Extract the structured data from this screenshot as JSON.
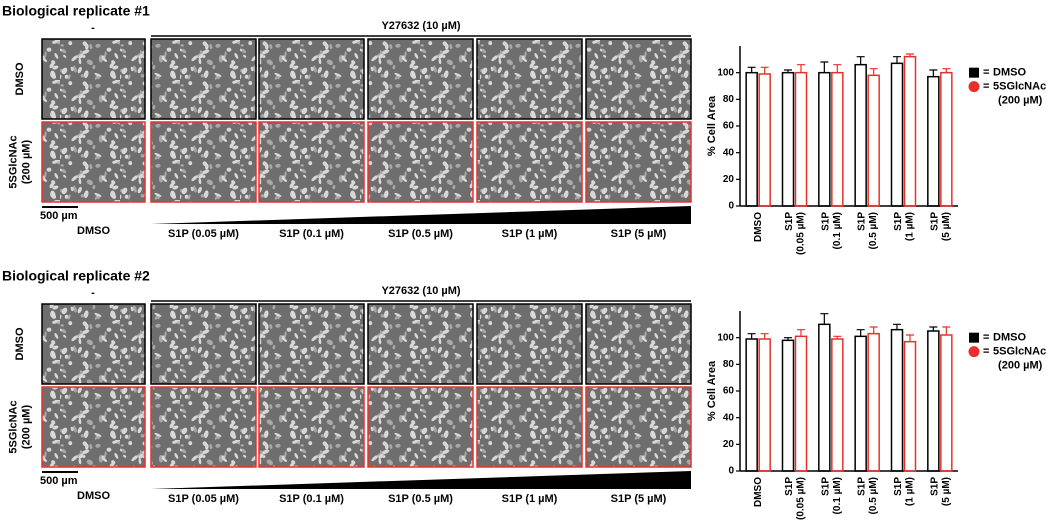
{
  "panels": [
    {
      "title": "Biological replicate #1",
      "untreated": "-",
      "treatment": "Y27632 (10 µM)",
      "row_labels": [
        [
          "DMSO"
        ],
        [
          "5SGlcNAc",
          "(200 µM)"
        ]
      ],
      "scale_bar": "500 µm",
      "column_labels": [
        "DMSO",
        "S1P (0.05 µM)",
        "S1P (0.1 µM)",
        "S1P (0.5 µM)",
        "S1P (1 µM)",
        "S1P (5 µM)"
      ]
    },
    {
      "title": "Biological replicate #2",
      "untreated": "-",
      "treatment": "Y27632 (10 µM)",
      "row_labels": [
        [
          "DMSO"
        ],
        [
          "5SGlcNAc",
          "(200 µM)"
        ]
      ],
      "scale_bar": "500 µm",
      "column_labels": [
        "DMSO",
        "S1P (0.05 µM)",
        "S1P (0.1 µM)",
        "S1P (0.5 µM)",
        "S1P (1 µM)",
        "S1P (5 µM)"
      ]
    }
  ],
  "chart_data": [
    {
      "type": "bar",
      "y_label": "% Cell Area",
      "legend_separator": "=",
      "categories": [
        "DMSO",
        "S1P (0.05 µM)",
        "S1P (0.1 µM)",
        "S1P (0.5 µM)",
        "S1P (1 µM)",
        "S1P (5 µM)"
      ],
      "series": [
        {
          "name": "DMSO",
          "color": "#000000",
          "values": [
            100,
            100,
            100,
            106,
            107,
            97
          ],
          "errors": [
            4,
            2,
            8,
            6,
            5,
            5
          ]
        },
        {
          "name": "5SGlcNAc (200 µM)",
          "color": "#e8302a",
          "values": [
            99,
            100,
            100,
            98,
            112,
            100
          ],
          "errors": [
            5,
            6,
            6,
            5,
            2,
            3
          ]
        }
      ],
      "ylim": [
        0,
        120
      ],
      "yticks": [
        0,
        20,
        40,
        60,
        80,
        100
      ]
    },
    {
      "type": "bar",
      "y_label": "% Cell Area",
      "legend_separator": "=",
      "categories": [
        "DMSO",
        "S1P (0.05 µM)",
        "S1P (0.1 µM)",
        "S1P (0.5 µM)",
        "S1P (1 µM)",
        "S1P (5 µM)"
      ],
      "series": [
        {
          "name": "DMSO",
          "color": "#000000",
          "values": [
            99,
            98,
            110,
            101,
            106,
            105
          ],
          "errors": [
            4,
            2,
            8,
            5,
            4,
            3
          ]
        },
        {
          "name": "5SGlcNAc (200 µM)",
          "color": "#e8302a",
          "values": [
            99,
            101,
            99,
            103,
            97,
            102
          ],
          "errors": [
            4,
            5,
            2,
            5,
            5,
            6
          ]
        }
      ],
      "ylim": [
        0,
        120
      ],
      "yticks": [
        0,
        20,
        40,
        60,
        80,
        100
      ]
    }
  ]
}
